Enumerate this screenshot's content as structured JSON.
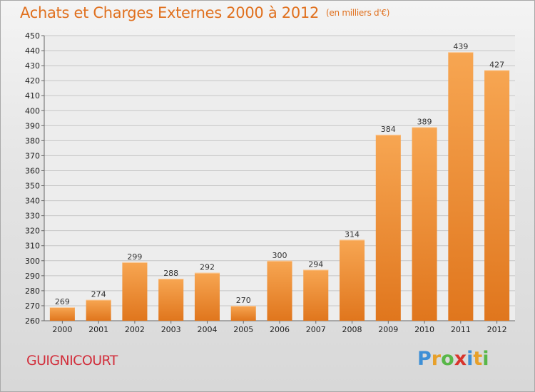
{
  "title": "Achats et Charges Externes 2000 à 2012",
  "unit_note": "(en milliers d'€)",
  "location": "GUIGNICOURT",
  "logo": {
    "letters": [
      "P",
      "r",
      "o",
      "x",
      "i",
      "t",
      "i"
    ],
    "colors": [
      "#3d8fd6",
      "#e7a02a",
      "#58b748",
      "#d8342c",
      "#3d8fd6",
      "#e7a02a",
      "#58b748"
    ]
  },
  "colors": {
    "bar_top": "#f7a652",
    "bar_bottom": "#e0761d",
    "title": "#e0701e",
    "location": "#d22f3c"
  },
  "chart_data": {
    "type": "bar",
    "categories": [
      "2000",
      "2001",
      "2002",
      "2003",
      "2004",
      "2005",
      "2006",
      "2007",
      "2008",
      "2009",
      "2010",
      "2011",
      "2012"
    ],
    "values": [
      269,
      274,
      299,
      288,
      292,
      270,
      300,
      294,
      314,
      384,
      389,
      439,
      427
    ],
    "ylim": [
      260,
      450
    ],
    "yticks": [
      260,
      270,
      280,
      290,
      300,
      310,
      320,
      330,
      340,
      350,
      360,
      370,
      380,
      390,
      400,
      410,
      420,
      430,
      440,
      450
    ],
    "grid": "horizontal",
    "title": "Achats et Charges Externes 2000 à 2012",
    "xlabel": "",
    "ylabel": ""
  }
}
